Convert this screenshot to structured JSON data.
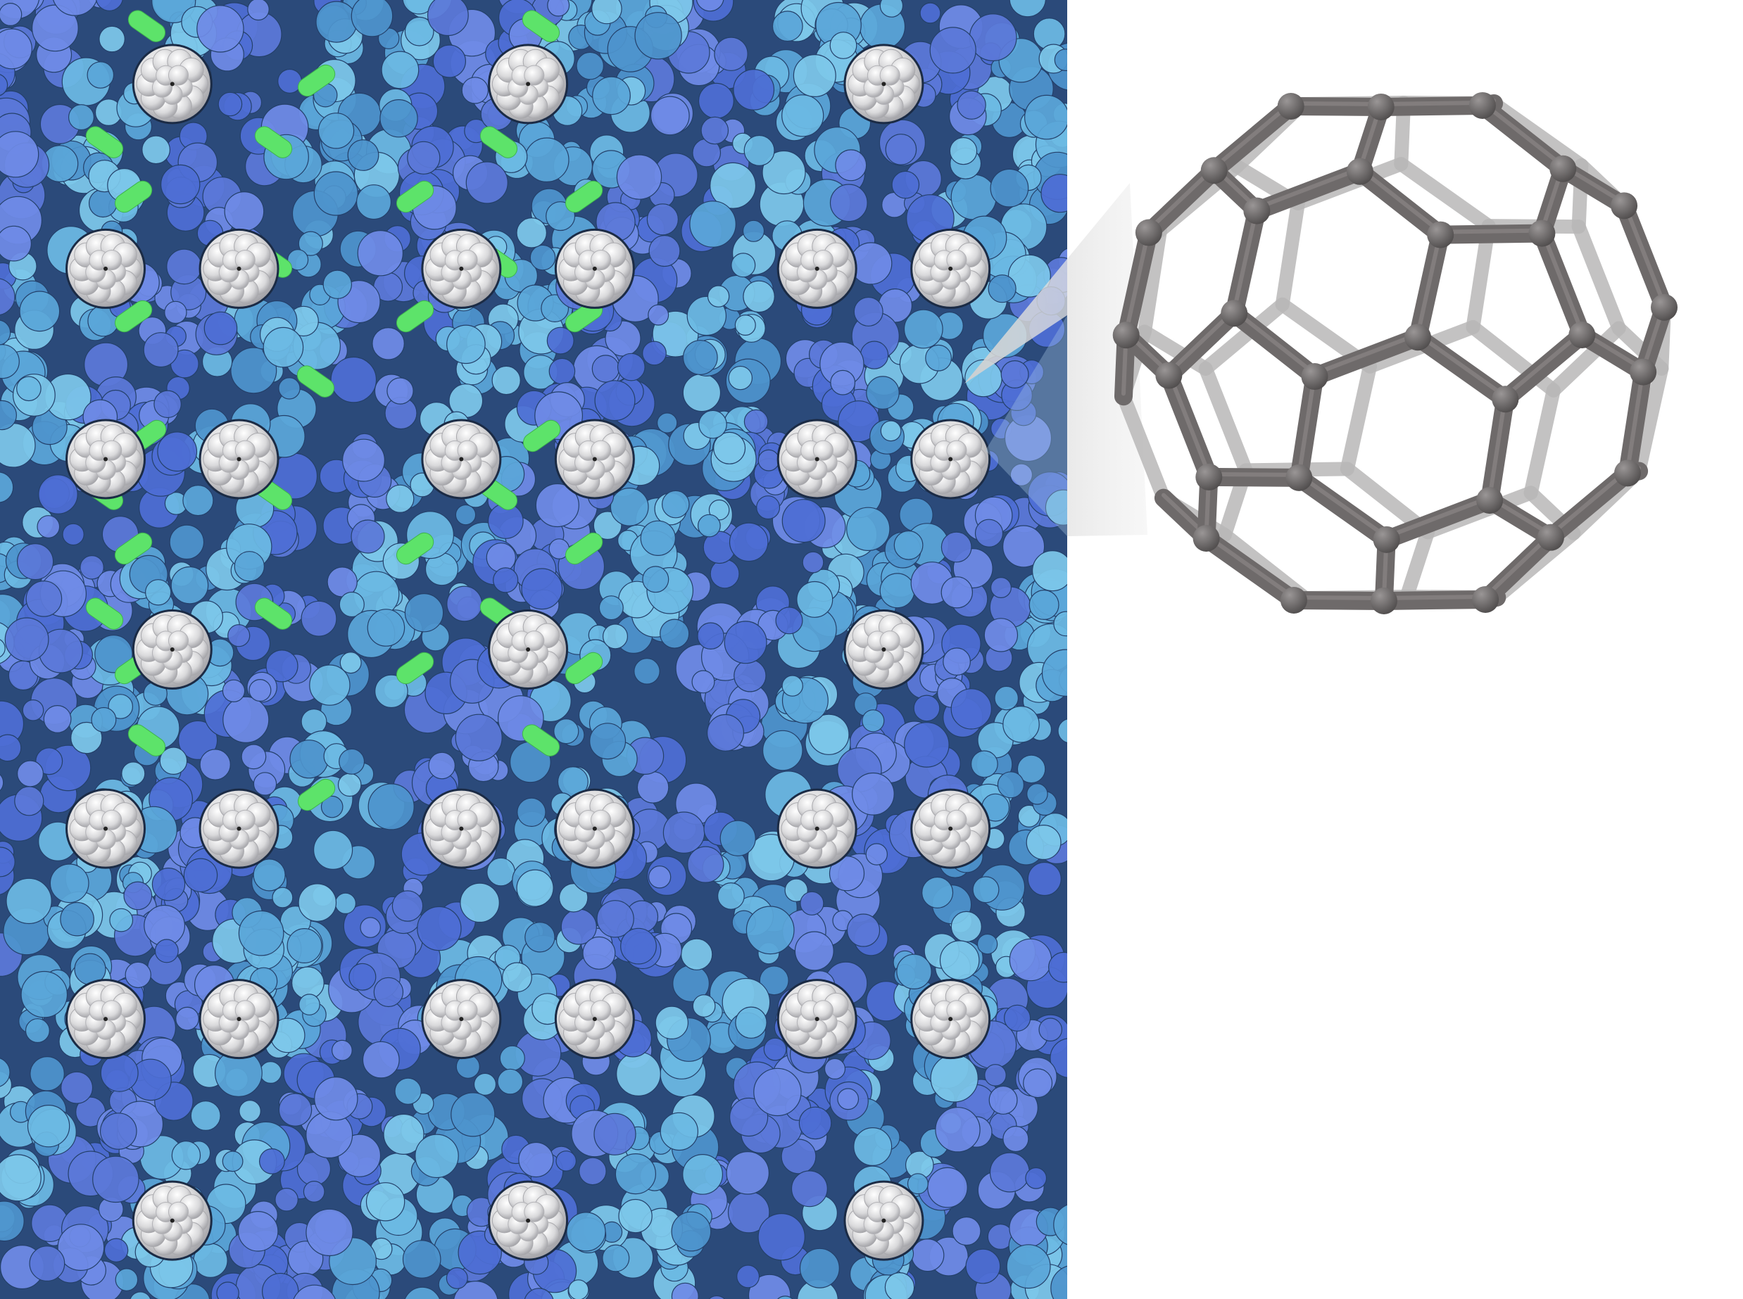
{
  "illustration": {
    "crystal_panel": {
      "background_color": "#2b4a7a",
      "protein_colors": [
        "#5b78d8",
        "#6f8be6",
        "#4d6ed4",
        "#5aa6d8",
        "#6cb9e3",
        "#4e93cc",
        "#7dc7ea"
      ],
      "ligand_color": "#5de36a",
      "buckyball_color": "#d7d7d9"
    },
    "zoom_cone": {
      "color": "#bfbfbf"
    },
    "molecule_model": {
      "name_icon": "buckminsterfullerene-c60-ball-and-stick",
      "atom_color": "#6b6868",
      "bond_color": "#6e6a6a",
      "back_bond_color": "#b9b7b7"
    }
  }
}
